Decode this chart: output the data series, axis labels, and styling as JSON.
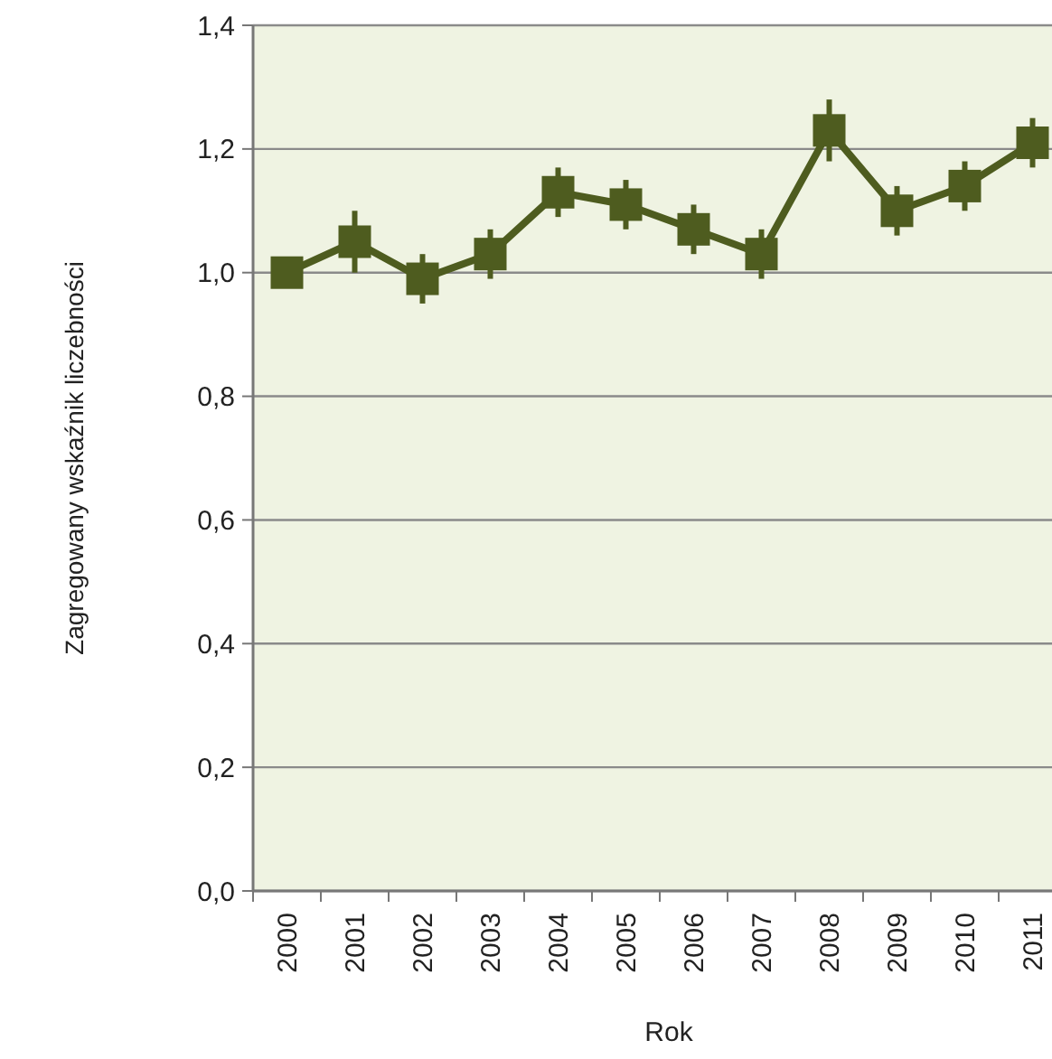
{
  "chart_data": {
    "type": "line",
    "xlabel": "Rok",
    "ylabel": "Zagregowany wskaźnik liczebności",
    "categories": [
      "2000",
      "2001",
      "2002",
      "2003",
      "2004",
      "2005",
      "2006",
      "2007",
      "2008",
      "2009",
      "2010",
      "2011"
    ],
    "series": [
      {
        "color": "#4e5c1f",
        "values": [
          1.0,
          1.05,
          0.99,
          1.03,
          1.13,
          1.11,
          1.07,
          1.03,
          1.23,
          1.1,
          1.14,
          1.21
        ],
        "errors": [
          null,
          0.05,
          0.04,
          0.04,
          0.04,
          0.04,
          0.04,
          0.04,
          0.05,
          0.04,
          0.04,
          0.04
        ]
      }
    ],
    "ylim": [
      0,
      1.4
    ],
    "yticks": [
      {
        "value": 0,
        "label": "0,0"
      },
      {
        "value": 0.2,
        "label": "0,2"
      },
      {
        "value": 0.4,
        "label": "0,4"
      },
      {
        "value": 0.6,
        "label": "0,6"
      },
      {
        "value": 0.8,
        "label": "0,8"
      },
      {
        "value": 1.0,
        "label": "1,0"
      },
      {
        "value": 1.2,
        "label": "1,2"
      },
      {
        "value": 1.4,
        "label": "1,4"
      }
    ],
    "grid": "y",
    "marker": "square",
    "line_style": "solid"
  }
}
